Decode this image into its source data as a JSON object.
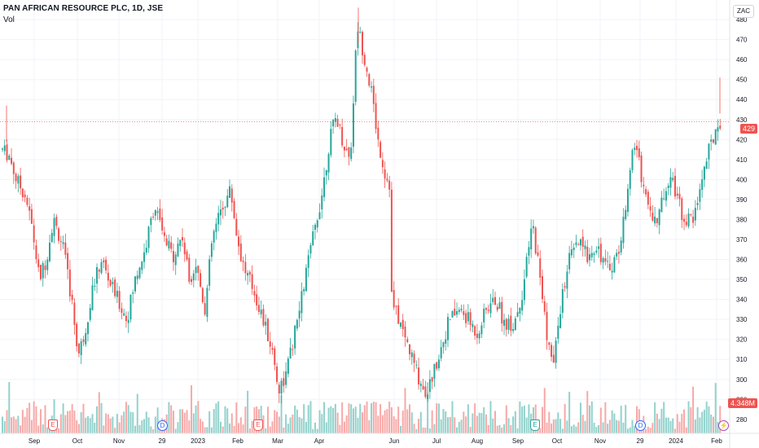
{
  "header": {
    "title": "PAN AFRICAN RESOURCE PLC, 1D, JSE",
    "volume_label": "Vol",
    "currency": "ZAC"
  },
  "price_tag": "429",
  "volume_tag": "4.348M",
  "events": [
    {
      "type": "E",
      "month": "Sep"
    },
    {
      "type": "D",
      "month": "29"
    },
    {
      "type": "E",
      "month": "Feb"
    },
    {
      "type": "E",
      "month": "Sep"
    },
    {
      "type": "D",
      "month": "29"
    },
    {
      "type": "lightning",
      "month": "Feb"
    }
  ],
  "colors": {
    "up": "#26a69a",
    "down": "#ef5350",
    "up_vol": "#92d2cc",
    "down_vol": "#f7a9a7",
    "grid": "#f0f3fa",
    "last_price_line": "#ef5350"
  },
  "chart_data": {
    "type": "candlestick",
    "title": "PAN AFRICAN RESOURCE PLC, 1D, JSE",
    "currency": "ZAC",
    "y_ticks": [
      280,
      290,
      300,
      310,
      320,
      330,
      340,
      350,
      360,
      370,
      380,
      390,
      400,
      410,
      420,
      430,
      440,
      450,
      460,
      470,
      480
    ],
    "ylim": [
      273,
      489
    ],
    "x_ticks": [
      "Sep",
      "Oct",
      "Nov",
      "29",
      "2023",
      "Feb",
      "Mar",
      "Apr",
      "Jun",
      "Jul",
      "Aug",
      "Sep",
      "Oct",
      "Nov",
      "29",
      "2024",
      "Feb"
    ],
    "last_price": 429,
    "last_volume": "4.348M",
    "grid": true,
    "price_path": [
      {
        "t": 0,
        "p": 415
      },
      {
        "t": 6,
        "p": 412
      },
      {
        "t": 12,
        "p": 400
      },
      {
        "t": 20,
        "p": 392
      },
      {
        "t": 26,
        "p": 375
      },
      {
        "t": 32,
        "p": 350
      },
      {
        "t": 38,
        "p": 360
      },
      {
        "t": 44,
        "p": 380
      },
      {
        "t": 52,
        "p": 368
      },
      {
        "t": 60,
        "p": 340
      },
      {
        "t": 66,
        "p": 312
      },
      {
        "t": 72,
        "p": 325
      },
      {
        "t": 78,
        "p": 345
      },
      {
        "t": 86,
        "p": 360
      },
      {
        "t": 92,
        "p": 350
      },
      {
        "t": 100,
        "p": 340
      },
      {
        "t": 108,
        "p": 330
      },
      {
        "t": 116,
        "p": 352
      },
      {
        "t": 124,
        "p": 365
      },
      {
        "t": 132,
        "p": 388
      },
      {
        "t": 140,
        "p": 370
      },
      {
        "t": 148,
        "p": 362
      },
      {
        "t": 156,
        "p": 372
      },
      {
        "t": 162,
        "p": 350
      },
      {
        "t": 168,
        "p": 358
      },
      {
        "t": 176,
        "p": 335
      },
      {
        "t": 182,
        "p": 370
      },
      {
        "t": 190,
        "p": 385
      },
      {
        "t": 198,
        "p": 395
      },
      {
        "t": 204,
        "p": 370
      },
      {
        "t": 210,
        "p": 355
      },
      {
        "t": 218,
        "p": 345
      },
      {
        "t": 226,
        "p": 330
      },
      {
        "t": 234,
        "p": 315
      },
      {
        "t": 240,
        "p": 295
      },
      {
        "t": 246,
        "p": 302
      },
      {
        "t": 252,
        "p": 318
      },
      {
        "t": 258,
        "p": 335
      },
      {
        "t": 264,
        "p": 355
      },
      {
        "t": 270,
        "p": 372
      },
      {
        "t": 278,
        "p": 395
      },
      {
        "t": 284,
        "p": 420
      },
      {
        "t": 290,
        "p": 432
      },
      {
        "t": 296,
        "p": 418
      },
      {
        "t": 302,
        "p": 410
      },
      {
        "t": 308,
        "p": 478
      },
      {
        "t": 314,
        "p": 462
      },
      {
        "t": 320,
        "p": 445
      },
      {
        "t": 326,
        "p": 420
      },
      {
        "t": 332,
        "p": 403
      },
      {
        "t": 336,
        "p": 398
      },
      {
        "t": 338,
        "p": 338
      },
      {
        "t": 344,
        "p": 330
      },
      {
        "t": 350,
        "p": 320
      },
      {
        "t": 356,
        "p": 310
      },
      {
        "t": 362,
        "p": 300
      },
      {
        "t": 368,
        "p": 293
      },
      {
        "t": 374,
        "p": 303
      },
      {
        "t": 380,
        "p": 315
      },
      {
        "t": 388,
        "p": 330
      },
      {
        "t": 396,
        "p": 335
      },
      {
        "t": 404,
        "p": 330
      },
      {
        "t": 412,
        "p": 323
      },
      {
        "t": 420,
        "p": 335
      },
      {
        "t": 428,
        "p": 340
      },
      {
        "t": 436,
        "p": 328
      },
      {
        "t": 444,
        "p": 328
      },
      {
        "t": 452,
        "p": 345
      },
      {
        "t": 460,
        "p": 378
      },
      {
        "t": 466,
        "p": 355
      },
      {
        "t": 472,
        "p": 325
      },
      {
        "t": 478,
        "p": 305
      },
      {
        "t": 484,
        "p": 335
      },
      {
        "t": 492,
        "p": 360
      },
      {
        "t": 500,
        "p": 368
      },
      {
        "t": 508,
        "p": 362
      },
      {
        "t": 516,
        "p": 368
      },
      {
        "t": 524,
        "p": 355
      },
      {
        "t": 532,
        "p": 360
      },
      {
        "t": 538,
        "p": 372
      },
      {
        "t": 544,
        "p": 405
      },
      {
        "t": 550,
        "p": 418
      },
      {
        "t": 556,
        "p": 398
      },
      {
        "t": 562,
        "p": 385
      },
      {
        "t": 568,
        "p": 378
      },
      {
        "t": 574,
        "p": 392
      },
      {
        "t": 580,
        "p": 405
      },
      {
        "t": 586,
        "p": 390
      },
      {
        "t": 592,
        "p": 380
      },
      {
        "t": 600,
        "p": 380
      },
      {
        "t": 606,
        "p": 398
      },
      {
        "t": 612,
        "p": 412
      },
      {
        "t": 618,
        "p": 422
      },
      {
        "t": 621,
        "p": 430
      },
      {
        "t": 623,
        "p": 429
      }
    ]
  }
}
